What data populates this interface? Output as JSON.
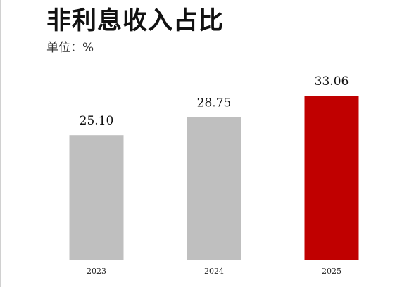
{
  "title": "非利息收入占比",
  "unit_label": "单位：%",
  "colors": {
    "default_bar": "#bfbfbf",
    "highlight_bar": "#c00000",
    "axis": "#555555"
  },
  "chart_data": {
    "type": "bar",
    "title": "非利息收入占比",
    "xlabel": "",
    "ylabel": "",
    "categories": [
      "2023",
      "2024",
      "2025"
    ],
    "values": [
      25.1,
      28.75,
      33.06
    ],
    "value_labels": [
      "25.10",
      "28.75",
      "33.06"
    ],
    "highlight_index": 2,
    "ylim": [
      0,
      35.5
    ],
    "grid": false,
    "legend": "none"
  }
}
